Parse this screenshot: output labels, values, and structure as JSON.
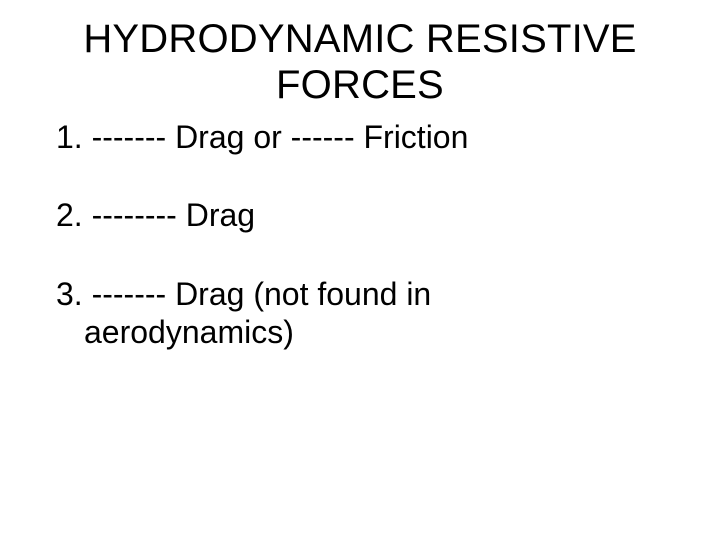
{
  "slide": {
    "title_line1": "HYDRODYNAMIC RESISTIVE",
    "title_line2": "FORCES",
    "items": [
      {
        "text": "1. ------- Drag or ------ Friction"
      },
      {
        "text": "2. -------- Drag"
      },
      {
        "text_line1": "3. ------- Drag (not found in",
        "text_line2": "aerodynamics)"
      }
    ],
    "colors": {
      "background": "#ffffff",
      "text": "#000000"
    },
    "typography": {
      "title_fontsize": 40,
      "body_fontsize": 32,
      "font_family": "Arial"
    }
  }
}
